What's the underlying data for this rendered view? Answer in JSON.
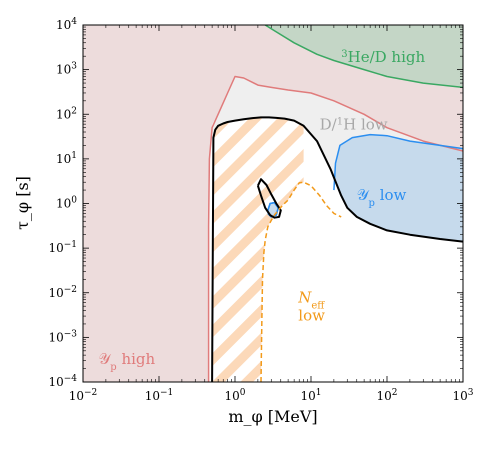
{
  "chart_data": {
    "type": "area",
    "title": "",
    "xlabel": "m_φ [MeV]",
    "ylabel": "τ_φ [s]",
    "xscale": "log",
    "yscale": "log",
    "xlim": [
      0.01,
      1000
    ],
    "ylim": [
      0.0001,
      10000
    ],
    "x_ticks": [
      {
        "value": 0.01,
        "base": "10",
        "exp": "−2"
      },
      {
        "value": 0.1,
        "base": "10",
        "exp": "−1"
      },
      {
        "value": 1,
        "base": "10",
        "exp": "0"
      },
      {
        "value": 10,
        "base": "10",
        "exp": "1"
      },
      {
        "value": 100,
        "base": "10",
        "exp": "2"
      },
      {
        "value": 1000,
        "base": "10",
        "exp": "3"
      }
    ],
    "y_ticks": [
      {
        "value": 0.0001,
        "base": "10",
        "exp": "−4"
      },
      {
        "value": 0.001,
        "base": "10",
        "exp": "−3"
      },
      {
        "value": 0.01,
        "base": "10",
        "exp": "−2"
      },
      {
        "value": 0.1,
        "base": "10",
        "exp": "−1"
      },
      {
        "value": 1,
        "base": "10",
        "exp": "0"
      },
      {
        "value": 10,
        "base": "10",
        "exp": "1"
      },
      {
        "value": 100,
        "base": "10",
        "exp": "2"
      },
      {
        "value": 1000,
        "base": "10",
        "exp": "3"
      },
      {
        "value": 10000,
        "base": "10",
        "exp": "4"
      }
    ],
    "regions": [
      {
        "key": "yp_high",
        "color": "#e07b7b",
        "fill": "#eddcdc",
        "boundary": [
          [
            0.45,
            0.0001
          ],
          [
            0.45,
            0.3
          ],
          [
            0.46,
            10
          ],
          [
            0.5,
            50
          ],
          [
            0.6,
            100
          ],
          [
            0.8,
            300
          ],
          [
            1.0,
            700
          ],
          [
            1.3,
            650
          ],
          [
            2,
            450
          ],
          [
            3,
            400
          ],
          [
            5,
            350
          ],
          [
            10,
            300
          ],
          [
            20,
            200
          ],
          [
            50,
            100
          ],
          [
            100,
            50
          ],
          [
            300,
            25
          ],
          [
            1000,
            15
          ]
        ]
      },
      {
        "key": "dh_low",
        "color": "#aaaaaa",
        "fill": "#efefef",
        "boundary": [
          [
            0.5,
            0.0001
          ],
          [
            0.5,
            60
          ],
          [
            0.6,
            100
          ],
          [
            0.8,
            300
          ],
          [
            1.0,
            700
          ],
          [
            1.3,
            650
          ],
          [
            2,
            450
          ],
          [
            3,
            400
          ],
          [
            5,
            350
          ],
          [
            10,
            300
          ],
          [
            20,
            200
          ],
          [
            50,
            100
          ],
          [
            100,
            50
          ],
          [
            300,
            25
          ],
          [
            1000,
            15
          ],
          [
            1000,
            0.15
          ],
          [
            300,
            0.18
          ],
          [
            100,
            0.22
          ],
          [
            40,
            0.35
          ],
          [
            25,
            0.6
          ],
          [
            12,
            1.8
          ],
          [
            8,
            2.4
          ]
        ]
      },
      {
        "key": "he3d_high",
        "color": "#3aa862",
        "fill": "#c4d6c6",
        "boundary": [
          [
            2.5,
            10000
          ],
          [
            3.5,
            7000
          ],
          [
            6,
            4000
          ],
          [
            12,
            2200
          ],
          [
            20,
            1600
          ],
          [
            50,
            1000
          ],
          [
            100,
            700
          ],
          [
            300,
            500
          ],
          [
            1000,
            400
          ],
          [
            1000,
            10000
          ]
        ]
      },
      {
        "key": "yp_low",
        "color": "#2b8ef0",
        "fill": "#c6daec",
        "boundary": [
          [
            20,
            2
          ],
          [
            21,
            8
          ],
          [
            24,
            20
          ],
          [
            35,
            30
          ],
          [
            60,
            35
          ],
          [
            100,
            33
          ],
          [
            200,
            25
          ],
          [
            500,
            20
          ],
          [
            1000,
            17
          ],
          [
            1000,
            0.14
          ],
          [
            300,
            0.17
          ],
          [
            100,
            0.2
          ],
          [
            50,
            0.3
          ],
          [
            30,
            0.6
          ],
          [
            22,
            1.0
          ]
        ]
      },
      {
        "key": "small_blue",
        "color": "#2b8ef0",
        "fill": "#c6daec",
        "boundary": [
          [
            2.7,
            0.7
          ],
          [
            2.9,
            1.0
          ],
          [
            3.3,
            1.05
          ],
          [
            3.7,
            0.8
          ],
          [
            3.5,
            0.55
          ],
          [
            3.0,
            0.5
          ],
          [
            2.75,
            0.58
          ]
        ]
      }
    ],
    "series": [
      {
        "key": "black_contour",
        "style": "solid",
        "color": "#000000",
        "x": [
          0.5,
          0.52,
          0.55,
          0.6,
          0.7,
          0.8,
          1.0,
          1.3,
          1.7,
          2.2,
          2.8,
          3.5,
          4.5,
          6,
          8,
          12,
          18,
          25,
          30,
          40,
          60,
          100,
          200,
          500,
          1000
        ],
        "y": [
          0.0001,
          30,
          45,
          55,
          62,
          67,
          72,
          77,
          82,
          85,
          85,
          83,
          80,
          72,
          55,
          25,
          6,
          1.5,
          0.8,
          0.5,
          0.35,
          0.25,
          0.2,
          0.16,
          0.14
        ]
      },
      {
        "key": "black_island",
        "style": "solid",
        "color": "#000000",
        "x": [
          2.0,
          2.2,
          2.6,
          3.0,
          3.5,
          4.0,
          3.8,
          3.3,
          2.9,
          2.5,
          2.2,
          2.0
        ],
        "y": [
          2.5,
          3.5,
          2.6,
          1.6,
          1.0,
          0.7,
          0.5,
          0.48,
          0.55,
          0.8,
          1.5,
          2.5
        ]
      },
      {
        "key": "neff_low",
        "style": "dashed",
        "color": "#f29a1a",
        "x": [
          2.2,
          2.25,
          2.3,
          2.4,
          2.5,
          2.7,
          3.0,
          3.3,
          3.7,
          4.2,
          5.0,
          6.0,
          7.0,
          8.0,
          10,
          13,
          16,
          20,
          25
        ],
        "y": [
          0.0001,
          0.002,
          0.02,
          0.08,
          0.15,
          0.3,
          0.42,
          0.55,
          0.7,
          0.9,
          1.2,
          2.0,
          2.9,
          3.0,
          2.5,
          1.5,
          0.9,
          0.6,
          0.5
        ]
      }
    ],
    "labels": [
      {
        "key": "he3d",
        "sup": "3",
        "text": "He/D high",
        "x": 25,
        "y": 1500,
        "color": "#3aa862"
      },
      {
        "key": "dh",
        "pre": "D/",
        "sup": "1",
        "text": "H low",
        "x": 13,
        "y": 45,
        "color": "#a8a8a8"
      },
      {
        "key": "yplow",
        "sym": "𝒴",
        "sub": "p",
        "text": " low",
        "x": 40,
        "y": 1.2,
        "color": "#2b8ef0"
      },
      {
        "key": "yphigh",
        "sym": "𝒴",
        "sub": "p",
        "text": " high",
        "x": 0.016,
        "y": 0.00025,
        "color": "#e07b7b"
      },
      {
        "key": "neff",
        "sym": "N",
        "sub": "eff",
        "text": "low",
        "x": 6.8,
        "y": 0.006,
        "color": "#f29a1a"
      }
    ],
    "hatch": {
      "color": "#fcd9b9",
      "between": "neff_low",
      "x_min": 0.5
    }
  }
}
